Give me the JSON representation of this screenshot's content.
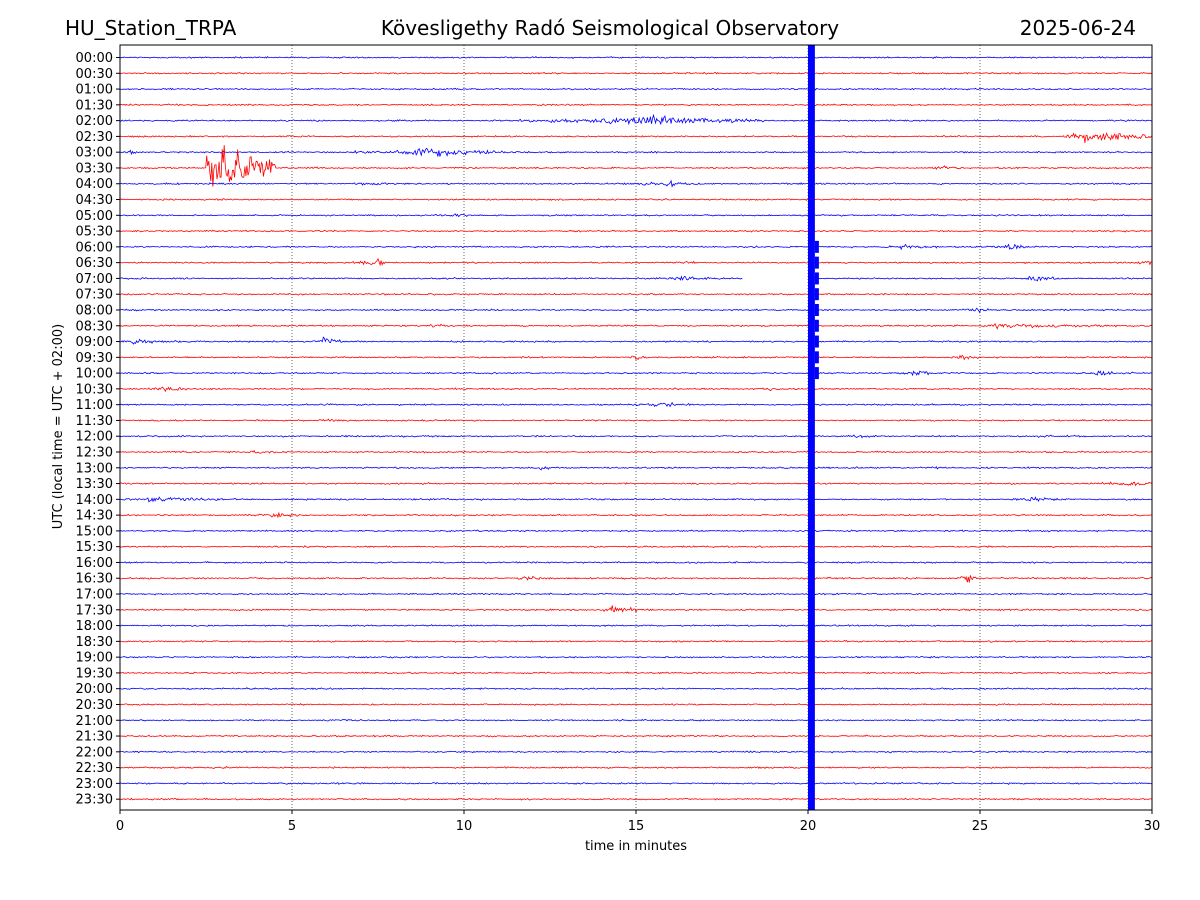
{
  "header": {
    "station": "HU_Station_TRPA",
    "observatory": "Kövesligethy Radó Seismological Observatory",
    "date": "2025-06-24"
  },
  "colors": {
    "trace_a": "#0000ff",
    "trace_b": "#ff0000",
    "grid": "#000000"
  },
  "chart_data": {
    "type": "line",
    "title": "Kövesligethy Radó Seismological Observatory",
    "xlabel": "time in minutes",
    "ylabel": "UTC (local time = UTC + 02:00)",
    "xlim": [
      0,
      30
    ],
    "x_ticks": [
      "0",
      "5",
      "10",
      "15",
      "20",
      "25",
      "30"
    ],
    "y_tick_labels": [
      "00:00",
      "00:30",
      "01:00",
      "01:30",
      "02:00",
      "02:30",
      "03:00",
      "03:30",
      "04:00",
      "04:30",
      "05:00",
      "05:30",
      "06:00",
      "06:30",
      "07:00",
      "07:30",
      "08:00",
      "08:30",
      "09:00",
      "09:30",
      "10:00",
      "10:30",
      "11:00",
      "11:30",
      "12:00",
      "12:30",
      "13:00",
      "13:30",
      "14:00",
      "14:30",
      "15:00",
      "15:30",
      "16:00",
      "16:30",
      "17:00",
      "17:30",
      "18:00",
      "18:30",
      "19:00",
      "19:30",
      "20:00",
      "20:30",
      "21:00",
      "21:30",
      "22:00",
      "22:30",
      "23:00",
      "23:30"
    ],
    "grid": "vertical dotted lines at each x tick",
    "gaps": [
      {
        "row": "07:00",
        "from": 18.1,
        "to": 20.0
      }
    ],
    "saturated_band": {
      "from": 20.0,
      "to": 20.2,
      "color": "#0000ff"
    },
    "events": [
      {
        "row": "02:00",
        "start": 11.6,
        "end": 18.8,
        "amp": 0.5,
        "center": 15.6
      },
      {
        "row": "02:30",
        "start": 27.5,
        "end": 30.0,
        "amp": 0.75,
        "center": 28.1
      },
      {
        "row": "03:00",
        "start": 0.0,
        "end": 1.0,
        "amp": 0.2,
        "center": 0.3
      },
      {
        "row": "03:00",
        "start": 6.7,
        "end": 11.6,
        "amp": 0.45,
        "center": 9.2
      },
      {
        "row": "03:30",
        "start": 2.5,
        "end": 4.5,
        "amp": 3.0,
        "center": 2.55
      },
      {
        "row": "03:30",
        "start": 5.0,
        "end": 6.8,
        "amp": 0.15,
        "center": 5.6
      },
      {
        "row": "03:30",
        "start": 23.5,
        "end": 24.5,
        "amp": 0.25,
        "center": 23.8
      },
      {
        "row": "04:00",
        "start": 5.0,
        "end": 8.5,
        "amp": 0.18,
        "center": 7.5
      },
      {
        "row": "04:00",
        "start": 13.0,
        "end": 17.5,
        "amp": 0.22,
        "center": 16.0
      },
      {
        "row": "05:00",
        "start": 8.5,
        "end": 10.5,
        "amp": 0.2,
        "center": 9.7
      },
      {
        "row": "06:00",
        "start": 22.0,
        "end": 24.0,
        "amp": 0.25,
        "center": 22.8
      },
      {
        "row": "06:00",
        "start": 25.3,
        "end": 26.7,
        "amp": 0.3,
        "center": 25.9
      },
      {
        "row": "06:30",
        "start": 6.6,
        "end": 7.8,
        "amp": 0.35,
        "center": 7.5
      },
      {
        "row": "06:30",
        "start": 16.3,
        "end": 16.7,
        "amp": 0.3,
        "center": 16.5
      },
      {
        "row": "06:30",
        "start": 29.5,
        "end": 30.0,
        "amp": 0.3,
        "center": 29.9
      },
      {
        "row": "07:00",
        "start": 15.2,
        "end": 17.5,
        "amp": 0.25,
        "center": 16.4
      },
      {
        "row": "07:00",
        "start": 26.2,
        "end": 27.3,
        "amp": 0.35,
        "center": 26.6
      },
      {
        "row": "08:00",
        "start": 24.5,
        "end": 25.3,
        "amp": 0.3,
        "center": 24.9
      },
      {
        "row": "08:30",
        "start": 8.4,
        "end": 11.0,
        "amp": 0.15,
        "center": 9.0
      },
      {
        "row": "08:30",
        "start": 25.0,
        "end": 30.0,
        "amp": 0.25,
        "center": 25.5
      },
      {
        "row": "09:00",
        "start": 0.0,
        "end": 2.5,
        "amp": 0.25,
        "center": 0.4
      },
      {
        "row": "09:00",
        "start": 5.8,
        "end": 6.4,
        "amp": 0.5,
        "center": 5.9
      },
      {
        "row": "09:30",
        "start": 14.8,
        "end": 15.3,
        "amp": 0.3,
        "center": 15.0
      },
      {
        "row": "09:30",
        "start": 24.0,
        "end": 25.0,
        "amp": 0.3,
        "center": 24.5
      },
      {
        "row": "10:00",
        "start": 22.5,
        "end": 24.0,
        "amp": 0.3,
        "center": 23.1
      },
      {
        "row": "10:00",
        "start": 28.0,
        "end": 29.5,
        "amp": 0.3,
        "center": 28.4
      },
      {
        "row": "10:30",
        "start": 0.0,
        "end": 3.0,
        "amp": 0.2,
        "center": 1.2
      },
      {
        "row": "10:30",
        "start": 18.5,
        "end": 19.5,
        "amp": 0.15,
        "center": 18.9
      },
      {
        "row": "11:00",
        "start": 14.0,
        "end": 18.0,
        "amp": 0.2,
        "center": 15.5
      },
      {
        "row": "11:30",
        "start": 5.0,
        "end": 6.8,
        "amp": 0.2,
        "center": 6.0
      },
      {
        "row": "12:00",
        "start": 21.0,
        "end": 22.0,
        "amp": 0.25,
        "center": 21.5
      },
      {
        "row": "12:00",
        "start": 26.0,
        "end": 28.0,
        "amp": 0.15,
        "center": 26.8
      },
      {
        "row": "12:30",
        "start": 3.0,
        "end": 5.0,
        "amp": 0.2,
        "center": 4.0
      },
      {
        "row": "13:00",
        "start": 11.5,
        "end": 13.0,
        "amp": 0.18,
        "center": 12.2
      },
      {
        "row": "13:00",
        "start": 23.5,
        "end": 24.0,
        "amp": 0.2,
        "center": 23.7
      },
      {
        "row": "13:30",
        "start": 28.0,
        "end": 30.0,
        "amp": 0.3,
        "center": 29.5
      },
      {
        "row": "14:00",
        "start": 0.0,
        "end": 3.5,
        "amp": 0.3,
        "center": 0.9
      },
      {
        "row": "14:00",
        "start": 26.0,
        "end": 27.3,
        "amp": 0.35,
        "center": 26.5
      },
      {
        "row": "14:30",
        "start": 4.0,
        "end": 5.5,
        "amp": 0.3,
        "center": 4.5
      },
      {
        "row": "16:30",
        "start": 11.0,
        "end": 13.0,
        "amp": 0.2,
        "center": 11.8
      },
      {
        "row": "16:30",
        "start": 24.4,
        "end": 24.9,
        "amp": 0.65,
        "center": 24.6
      },
      {
        "row": "17:30",
        "start": 14.0,
        "end": 15.5,
        "amp": 0.45,
        "center": 14.3
      }
    ]
  }
}
